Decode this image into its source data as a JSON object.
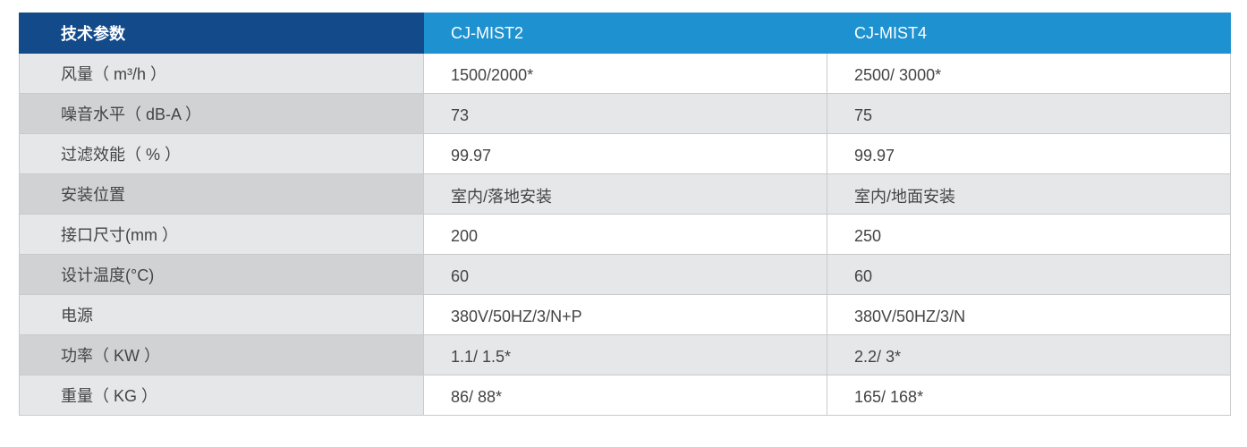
{
  "header": [
    "技术参数",
    "CJ-MIST2",
    "CJ-MIST4"
  ],
  "rows": [
    [
      "风量（ m³/h ）",
      "1500/2000*",
      "2500/ 3000*"
    ],
    [
      "噪音水平（ dB-A ）",
      "73",
      "75"
    ],
    [
      "过滤效能（ % ）",
      "99.97",
      "99.97"
    ],
    [
      "安装位置",
      "室内/落地安装",
      "室内/地面安装"
    ],
    [
      "接口尺寸(mm ）",
      "200",
      "250"
    ],
    [
      "设计温度(°C)",
      "60",
      "60"
    ],
    [
      "电源",
      "380V/50HZ/3/N+P",
      "380V/50HZ/3/N"
    ],
    [
      "功率（ KW ）",
      "1.1/ 1.5*",
      "2.2/ 3*"
    ],
    [
      "重量（ KG ）",
      "86/ 88*",
      "165/ 168*"
    ]
  ],
  "colors": {
    "header_dark": "#134b8a",
    "header_light": "#1e92d0"
  }
}
